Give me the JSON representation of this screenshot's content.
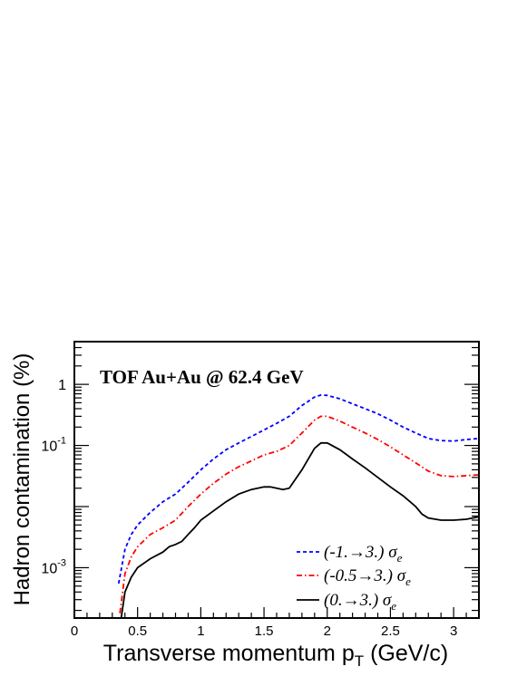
{
  "chart_data": {
    "type": "line",
    "title": "TOF Au+Au @ 62.4 GeV",
    "xlabel": "Transverse momentum p",
    "xlabel_sub": "T",
    "xlabel_unit": " (GeV/c)",
    "ylabel": "Hadron contamination (%)",
    "xlim": [
      0,
      3.2
    ],
    "ylim": [
      0.00015,
      5
    ],
    "yscale": "log",
    "grid": false,
    "legend_position": "bottom-right",
    "x_ticks": [
      {
        "value": 0,
        "label": "0"
      },
      {
        "value": 0.5,
        "label": "0.5"
      },
      {
        "value": 1,
        "label": "1"
      },
      {
        "value": 1.5,
        "label": "1.5"
      },
      {
        "value": 2,
        "label": "2"
      },
      {
        "value": 2.5,
        "label": "2.5"
      },
      {
        "value": 3,
        "label": "3"
      }
    ],
    "y_ticks": [
      {
        "value": 1,
        "base": "1",
        "exp": ""
      },
      {
        "value": 0.1,
        "base": "10",
        "exp": "-1"
      },
      {
        "value": 0.001,
        "base": "10",
        "exp": "-3"
      }
    ],
    "series": [
      {
        "name": "(-1.→3.) σ",
        "name_sub": "e",
        "color": "#0000ff",
        "dash": "4,3",
        "points": [
          [
            0.35,
            0.00055
          ],
          [
            0.4,
            0.002
          ],
          [
            0.45,
            0.0035
          ],
          [
            0.5,
            0.005
          ],
          [
            0.6,
            0.008
          ],
          [
            0.7,
            0.012
          ],
          [
            0.8,
            0.016
          ],
          [
            0.9,
            0.025
          ],
          [
            1.0,
            0.04
          ],
          [
            1.1,
            0.06
          ],
          [
            1.2,
            0.085
          ],
          [
            1.3,
            0.11
          ],
          [
            1.4,
            0.14
          ],
          [
            1.5,
            0.18
          ],
          [
            1.6,
            0.23
          ],
          [
            1.7,
            0.3
          ],
          [
            1.8,
            0.45
          ],
          [
            1.9,
            0.62
          ],
          [
            1.95,
            0.67
          ],
          [
            2.0,
            0.66
          ],
          [
            2.1,
            0.58
          ],
          [
            2.2,
            0.48
          ],
          [
            2.3,
            0.4
          ],
          [
            2.4,
            0.33
          ],
          [
            2.5,
            0.26
          ],
          [
            2.6,
            0.2
          ],
          [
            2.7,
            0.16
          ],
          [
            2.8,
            0.13
          ],
          [
            2.9,
            0.12
          ],
          [
            3.0,
            0.118
          ],
          [
            3.1,
            0.125
          ],
          [
            3.2,
            0.13
          ]
        ]
      },
      {
        "name": "(-0.5→3.) σ",
        "name_sub": "e",
        "color": "#ff0000",
        "dash": "6,3,1.5,3",
        "points": [
          [
            0.36,
            0.00018
          ],
          [
            0.4,
            0.0008
          ],
          [
            0.45,
            0.0015
          ],
          [
            0.5,
            0.0022
          ],
          [
            0.6,
            0.0035
          ],
          [
            0.7,
            0.0045
          ],
          [
            0.8,
            0.006
          ],
          [
            0.9,
            0.01
          ],
          [
            1.0,
            0.016
          ],
          [
            1.1,
            0.024
          ],
          [
            1.2,
            0.034
          ],
          [
            1.3,
            0.045
          ],
          [
            1.4,
            0.056
          ],
          [
            1.5,
            0.07
          ],
          [
            1.6,
            0.08
          ],
          [
            1.7,
            0.1
          ],
          [
            1.8,
            0.16
          ],
          [
            1.9,
            0.26
          ],
          [
            1.95,
            0.3
          ],
          [
            2.0,
            0.3
          ],
          [
            2.1,
            0.25
          ],
          [
            2.2,
            0.2
          ],
          [
            2.3,
            0.16
          ],
          [
            2.4,
            0.125
          ],
          [
            2.5,
            0.095
          ],
          [
            2.6,
            0.07
          ],
          [
            2.7,
            0.052
          ],
          [
            2.8,
            0.038
          ],
          [
            2.9,
            0.032
          ],
          [
            3.0,
            0.031
          ],
          [
            3.1,
            0.032
          ],
          [
            3.2,
            0.033
          ]
        ]
      },
      {
        "name": "(0.→3.) σ",
        "name_sub": "e",
        "color": "#000000",
        "dash": "",
        "points": [
          [
            0.37,
            0.00015
          ],
          [
            0.4,
            0.0004
          ],
          [
            0.45,
            0.0007
          ],
          [
            0.5,
            0.001
          ],
          [
            0.6,
            0.0014
          ],
          [
            0.7,
            0.0018
          ],
          [
            0.75,
            0.0022
          ],
          [
            0.8,
            0.0024
          ],
          [
            0.85,
            0.0027
          ],
          [
            0.9,
            0.0035
          ],
          [
            0.95,
            0.0045
          ],
          [
            1.0,
            0.006
          ],
          [
            1.1,
            0.0085
          ],
          [
            1.2,
            0.012
          ],
          [
            1.3,
            0.016
          ],
          [
            1.4,
            0.019
          ],
          [
            1.5,
            0.021
          ],
          [
            1.55,
            0.021
          ],
          [
            1.6,
            0.02
          ],
          [
            1.65,
            0.019
          ],
          [
            1.7,
            0.02
          ],
          [
            1.8,
            0.04
          ],
          [
            1.9,
            0.09
          ],
          [
            1.95,
            0.11
          ],
          [
            2.0,
            0.11
          ],
          [
            2.1,
            0.085
          ],
          [
            2.2,
            0.06
          ],
          [
            2.3,
            0.043
          ],
          [
            2.4,
            0.03
          ],
          [
            2.5,
            0.021
          ],
          [
            2.6,
            0.015
          ],
          [
            2.7,
            0.01
          ],
          [
            2.75,
            0.0075
          ],
          [
            2.8,
            0.0065
          ],
          [
            2.9,
            0.006
          ],
          [
            3.0,
            0.006
          ],
          [
            3.1,
            0.0062
          ],
          [
            3.2,
            0.0068
          ]
        ]
      }
    ]
  }
}
